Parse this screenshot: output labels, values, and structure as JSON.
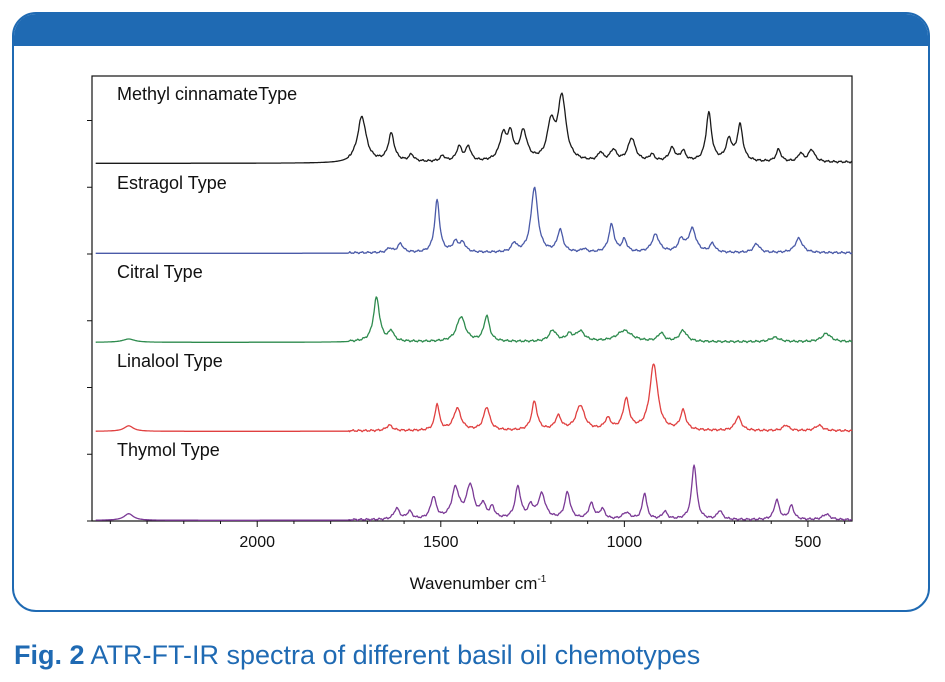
{
  "caption": {
    "label": "Fig. 2",
    "text": "ATR-FT-IR spectra of different basil oil chemotypes"
  },
  "colors": {
    "frame": "#1f6ab3",
    "caption": "#1f6ab3"
  },
  "chart_data": {
    "type": "line",
    "title": "",
    "xlabel": "Wavenumber cm",
    "xlabel_sup": "-1",
    "ylabel": "",
    "xlim": [
      2450,
      380
    ],
    "x_reversed": true,
    "xticks": [
      2000,
      1500,
      1000,
      500
    ],
    "ylim": [
      0,
      5
    ],
    "grid": false,
    "series": [
      {
        "name": "Methyl cinnamateType",
        "color": "#1a1a1a",
        "offset": 4.0,
        "baseline": 0.05,
        "peaks": [
          [
            1715,
            0.82,
            14
          ],
          [
            1635,
            0.5,
            10
          ],
          [
            1580,
            0.12,
            8
          ],
          [
            1495,
            0.1,
            8
          ],
          [
            1450,
            0.26,
            9
          ],
          [
            1425,
            0.26,
            8
          ],
          [
            1330,
            0.46,
            12
          ],
          [
            1310,
            0.42,
            9
          ],
          [
            1275,
            0.52,
            12
          ],
          [
            1200,
            0.65,
            12
          ],
          [
            1170,
            1.15,
            13
          ],
          [
            1065,
            0.15,
            8
          ],
          [
            1030,
            0.2,
            10
          ],
          [
            980,
            0.42,
            12
          ],
          [
            925,
            0.12,
            8
          ],
          [
            870,
            0.24,
            10
          ],
          [
            840,
            0.18,
            8
          ],
          [
            770,
            0.88,
            9
          ],
          [
            715,
            0.38,
            10
          ],
          [
            685,
            0.65,
            9
          ],
          [
            580,
            0.22,
            8
          ],
          [
            520,
            0.15,
            8
          ],
          [
            490,
            0.22,
            10
          ]
        ]
      },
      {
        "name": "Estragol Type",
        "color": "#4a5aa8",
        "offset": 3.0,
        "baseline": 0.02,
        "peaks": [
          [
            1640,
            0.08,
            8
          ],
          [
            1610,
            0.16,
            9
          ],
          [
            1510,
            0.95,
            8
          ],
          [
            1460,
            0.18,
            10
          ],
          [
            1440,
            0.16,
            9
          ],
          [
            1300,
            0.16,
            8
          ],
          [
            1245,
            1.18,
            11
          ],
          [
            1175,
            0.4,
            9
          ],
          [
            1110,
            0.06,
            8
          ],
          [
            1035,
            0.5,
            9
          ],
          [
            1000,
            0.22,
            8
          ],
          [
            915,
            0.32,
            12
          ],
          [
            845,
            0.22,
            10
          ],
          [
            815,
            0.42,
            12
          ],
          [
            760,
            0.16,
            8
          ],
          [
            640,
            0.16,
            10
          ],
          [
            525,
            0.26,
            12
          ]
        ]
      },
      {
        "name": "Citral Type",
        "color": "#2e8b4e",
        "offset": 2.0,
        "baseline": 0.02,
        "peaks": [
          [
            2350,
            0.06,
            20
          ],
          [
            1675,
            0.8,
            10
          ],
          [
            1635,
            0.18,
            8
          ],
          [
            1445,
            0.45,
            14
          ],
          [
            1375,
            0.46,
            9
          ],
          [
            1195,
            0.2,
            12
          ],
          [
            1150,
            0.12,
            10
          ],
          [
            1120,
            0.18,
            14
          ],
          [
            1000,
            0.2,
            25
          ],
          [
            900,
            0.15,
            10
          ],
          [
            840,
            0.2,
            12
          ],
          [
            590,
            0.08,
            15
          ],
          [
            450,
            0.15,
            15
          ]
        ]
      },
      {
        "name": "Linalool Type",
        "color": "#e04040",
        "offset": 1.0,
        "baseline": 0.02,
        "peaks": [
          [
            2350,
            0.1,
            15
          ],
          [
            1640,
            0.1,
            10
          ],
          [
            1510,
            0.48,
            7
          ],
          [
            1455,
            0.4,
            12
          ],
          [
            1375,
            0.42,
            10
          ],
          [
            1245,
            0.52,
            9
          ],
          [
            1180,
            0.25,
            10
          ],
          [
            1120,
            0.45,
            14
          ],
          [
            1045,
            0.2,
            10
          ],
          [
            995,
            0.55,
            10
          ],
          [
            920,
            1.2,
            13
          ],
          [
            840,
            0.35,
            9
          ],
          [
            690,
            0.25,
            10
          ],
          [
            560,
            0.1,
            10
          ],
          [
            470,
            0.1,
            12
          ]
        ]
      },
      {
        "name": "Thymol Type",
        "color": "#7b3a96",
        "offset": 0.0,
        "baseline": 0.02,
        "peaks": [
          [
            2350,
            0.12,
            15
          ],
          [
            1620,
            0.2,
            9
          ],
          [
            1585,
            0.14,
            8
          ],
          [
            1520,
            0.4,
            9
          ],
          [
            1460,
            0.55,
            12
          ],
          [
            1420,
            0.6,
            12
          ],
          [
            1385,
            0.25,
            8
          ],
          [
            1360,
            0.2,
            8
          ],
          [
            1290,
            0.58,
            9
          ],
          [
            1255,
            0.22,
            8
          ],
          [
            1225,
            0.45,
            12
          ],
          [
            1155,
            0.48,
            9
          ],
          [
            1090,
            0.28,
            9
          ],
          [
            1060,
            0.18,
            8
          ],
          [
            995,
            0.12,
            12
          ],
          [
            945,
            0.48,
            7
          ],
          [
            890,
            0.14,
            8
          ],
          [
            810,
            1.0,
            8
          ],
          [
            740,
            0.16,
            8
          ],
          [
            585,
            0.36,
            8
          ],
          [
            545,
            0.25,
            8
          ],
          [
            450,
            0.1,
            12
          ]
        ]
      }
    ]
  }
}
